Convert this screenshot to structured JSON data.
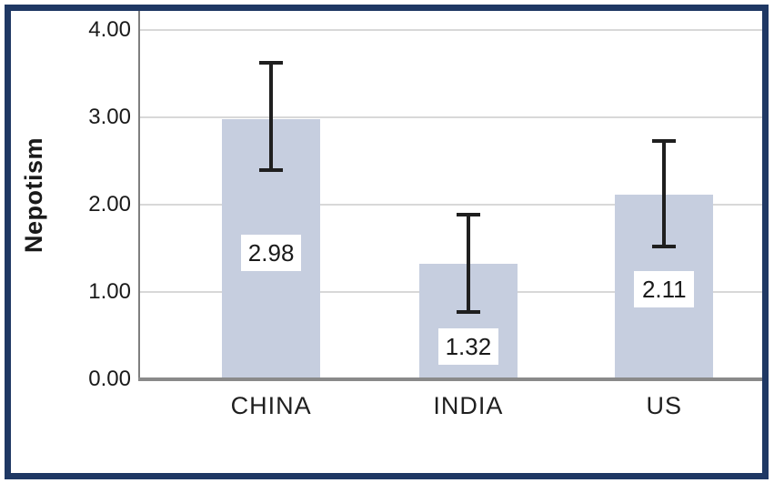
{
  "chart_data": {
    "type": "bar",
    "title": "",
    "xlabel": "",
    "ylabel": "Nepotism",
    "categories": [
      "CHINA",
      "INDIA",
      "US"
    ],
    "values": [
      2.98,
      1.32,
      2.11
    ],
    "value_labels": [
      "2.98",
      "1.32",
      "2.11"
    ],
    "error_low": [
      2.37,
      0.75,
      1.5
    ],
    "error_high": [
      3.65,
      1.91,
      2.75
    ],
    "label_center_y": [
      1.45,
      0.37,
      1.03
    ],
    "yticks": [
      {
        "label": "4.00",
        "value": 4
      },
      {
        "label": "3.00",
        "value": 3
      },
      {
        "label": "2.00",
        "value": 2
      },
      {
        "label": "1.00",
        "value": 1
      },
      {
        "label": "0.00",
        "value": 0
      }
    ],
    "ylim": [
      0,
      4.2
    ],
    "grid": true,
    "legend_position": "none",
    "colors": {
      "bar_fill": "#c6cedf",
      "error_bar": "#1f1f1f",
      "grid_line": "#d8d8d8",
      "axis_line": "#8a8a8a",
      "y_axis_line": "#7f7f7f",
      "frame_border": "#1f3864",
      "text": "#1a1a1a",
      "label_box_bg": "#ffffff"
    }
  }
}
